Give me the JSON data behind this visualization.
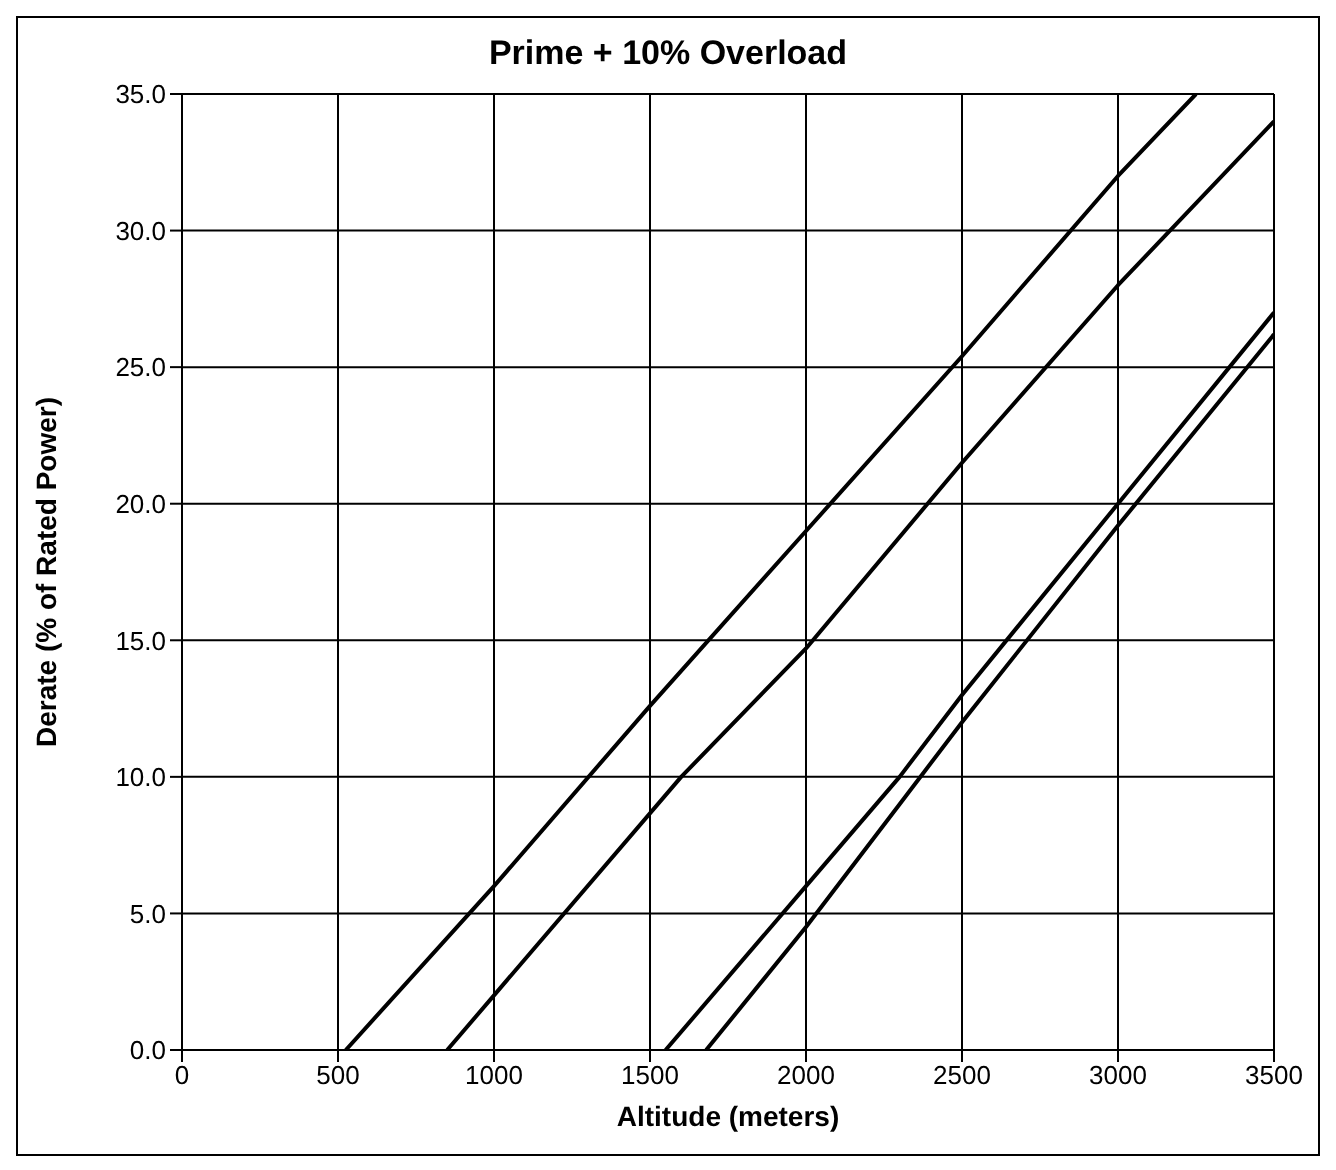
{
  "chart_data": {
    "type": "line",
    "title": "Prime + 10% Overload",
    "xlabel": "Altitude (meters)",
    "ylabel": "Derate (% of Rated Power)",
    "xlim": [
      0,
      3500
    ],
    "xticks": [
      0,
      500,
      1000,
      1500,
      2000,
      2500,
      3000,
      3500
    ],
    "ylim": [
      0,
      35
    ],
    "yticks": [
      {
        "value": 0,
        "label": "0.0"
      },
      {
        "value": 5,
        "label": "5.0"
      },
      {
        "value": 10,
        "label": "10.0"
      },
      {
        "value": 15,
        "label": "15.0"
      },
      {
        "value": 20,
        "label": "20.0"
      },
      {
        "value": 25,
        "label": "25.0"
      },
      {
        "value": 30,
        "label": "30.0"
      },
      {
        "value": 35,
        "label": "35.0"
      }
    ],
    "grid": true,
    "marker": "none",
    "line_style": "solid",
    "series": [
      {
        "color": "#000000",
        "x": [
          525,
          1000,
          1500,
          2000,
          2500,
          3000,
          3250
        ],
        "values": [
          0,
          6,
          12.6,
          19,
          25.4,
          32,
          35
        ]
      },
      {
        "color": "#000000",
        "x": [
          850,
          1000,
          1600,
          2000,
          2500,
          3000,
          3500
        ],
        "values": [
          0,
          2,
          10,
          14.7,
          21.5,
          28,
          34
        ]
      },
      {
        "color": "#000000",
        "x": [
          1550,
          2000,
          2300,
          2500,
          3000,
          3500
        ],
        "values": [
          0,
          6,
          10,
          13,
          20,
          27
        ]
      },
      {
        "color": "#000000",
        "x": [
          1680,
          2000,
          2300,
          2500,
          3000,
          3500
        ],
        "values": [
          0,
          4.5,
          9,
          12,
          19.2,
          26.2
        ]
      }
    ]
  }
}
